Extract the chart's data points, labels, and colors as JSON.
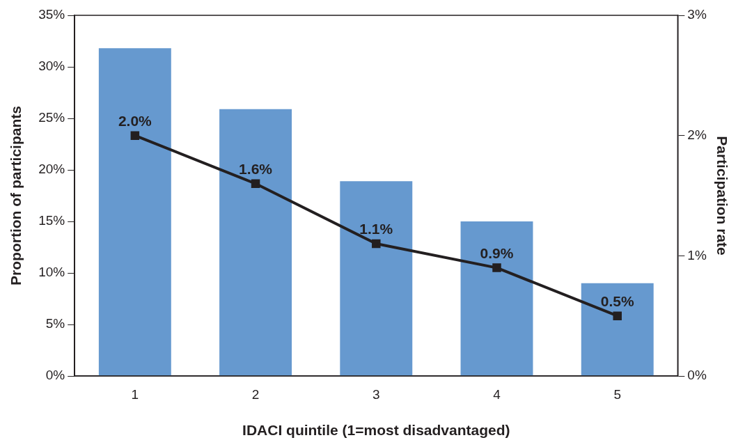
{
  "chart_data": {
    "type": "bar",
    "xlabel": "IDACI quintile (1=most disadvantaged)",
    "ylabel": "Proportion of participants",
    "y2label": "Participation rate",
    "categories": [
      "1",
      "2",
      "3",
      "4",
      "5"
    ],
    "series": [
      {
        "color": "#6699cf",
        "values": [
          31.8,
          25.9,
          18.9,
          15.0,
          9.0
        ]
      },
      {
        "type": "line",
        "axis": "y2",
        "color": "#231f20",
        "values": [
          2.0,
          1.6,
          1.1,
          0.9,
          0.5
        ],
        "value_labels": [
          "2.0%",
          "1.6%",
          "1.1%",
          "0.9%",
          "0.5%"
        ],
        "marker": "square",
        "line_style": "solid"
      }
    ],
    "ylim": [
      0,
      35
    ],
    "yticks": [
      {
        "value": 0,
        "label": "0%"
      },
      {
        "value": 5,
        "label": "5%"
      },
      {
        "value": 10,
        "label": "10%"
      },
      {
        "value": 15,
        "label": "15%"
      },
      {
        "value": 20,
        "label": "20%"
      },
      {
        "value": 25,
        "label": "25%"
      },
      {
        "value": 30,
        "label": "30%"
      },
      {
        "value": 35,
        "label": "35%"
      }
    ],
    "y2lim": [
      0,
      3
    ],
    "y2ticks": [
      {
        "value": 0,
        "label": "0%"
      },
      {
        "value": 1,
        "label": "1%"
      },
      {
        "value": 2,
        "label": "2%"
      },
      {
        "value": 3,
        "label": "3%"
      }
    ],
    "grid": false,
    "legend": false
  }
}
